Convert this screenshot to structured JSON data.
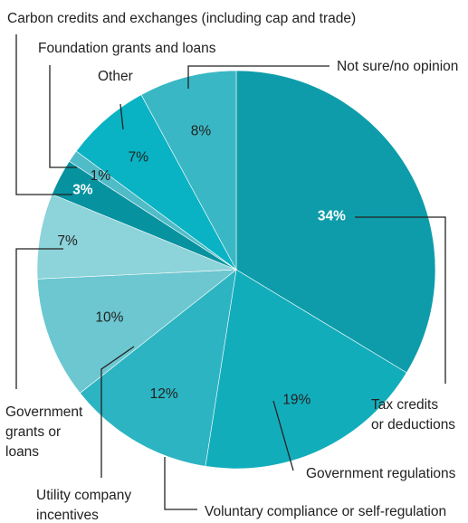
{
  "chart_data": {
    "type": "pie",
    "slices": [
      {
        "label": "Tax credits or deductions",
        "label_lines": [
          "Tax credits",
          "or deductions"
        ],
        "value": 34,
        "value_label": "34%",
        "color": "#0e9caa"
      },
      {
        "label": "Government regulations",
        "label_lines": [
          "Government regulations"
        ],
        "value": 19,
        "value_label": "19%",
        "color": "#12adbb"
      },
      {
        "label": "Voluntary compliance or self-regulation",
        "label_lines": [
          "Voluntary compliance or self-regulation"
        ],
        "value": 12,
        "value_label": "12%",
        "color": "#2cb4c2"
      },
      {
        "label": "Utility company incentives",
        "label_lines": [
          "Utility company",
          "incentives"
        ],
        "value": 10,
        "value_label": "10%",
        "color": "#6cc7d0"
      },
      {
        "label": "Government grants or loans",
        "label_lines": [
          "Government",
          "grants or",
          "loans"
        ],
        "value": 7,
        "value_label": "7%",
        "color": "#8dd3da"
      },
      {
        "label": "Carbon credits and exchanges (including cap and trade)",
        "label_lines": [
          "Carbon credits and exchanges (including cap and trade)"
        ],
        "value": 3,
        "value_label": "3%",
        "color": "#0792a0"
      },
      {
        "label": "Foundation grants and loans",
        "label_lines": [
          "Foundation grants and loans"
        ],
        "value": 1,
        "value_label": "1%",
        "color": "#4fbcc8"
      },
      {
        "label": "Other",
        "label_lines": [
          "Other"
        ],
        "value": 7,
        "value_label": "7%",
        "color": "#09b3c3"
      },
      {
        "label": "Not sure/no opinion",
        "label_lines": [
          "Not sure/no opinion"
        ],
        "value": 8,
        "value_label": "8%",
        "color": "#3ab7c4"
      }
    ]
  }
}
